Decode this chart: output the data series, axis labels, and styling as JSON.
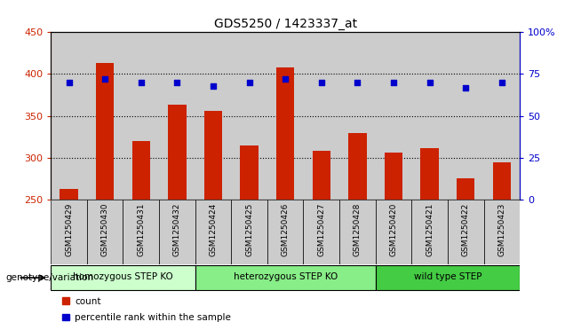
{
  "title": "GDS5250 / 1423337_at",
  "samples": [
    "GSM1250429",
    "GSM1250430",
    "GSM1250431",
    "GSM1250432",
    "GSM1250424",
    "GSM1250425",
    "GSM1250426",
    "GSM1250427",
    "GSM1250428",
    "GSM1250420",
    "GSM1250421",
    "GSM1250422",
    "GSM1250423"
  ],
  "counts": [
    263,
    413,
    320,
    363,
    356,
    315,
    408,
    308,
    330,
    306,
    311,
    275,
    295
  ],
  "percentiles": [
    70,
    72,
    70,
    70,
    68,
    70,
    72,
    70,
    70,
    70,
    70,
    67,
    70
  ],
  "count_baseline": 250,
  "ylim_left": [
    250,
    450
  ],
  "ylim_right": [
    0,
    100
  ],
  "yticks_left": [
    250,
    300,
    350,
    400,
    450
  ],
  "yticks_right": [
    0,
    25,
    50,
    75,
    100
  ],
  "bar_color": "#cc2200",
  "dot_color": "#0000cc",
  "groups": [
    {
      "label": "homozygous STEP KO",
      "start": 0,
      "end": 4,
      "color": "#ccffcc"
    },
    {
      "label": "heterozygous STEP KO",
      "start": 4,
      "end": 9,
      "color": "#88ee88"
    },
    {
      "label": "wild type STEP",
      "start": 9,
      "end": 13,
      "color": "#44cc44"
    }
  ],
  "xlabel_genotype": "genotype/variation",
  "legend_count": "count",
  "legend_percentile": "percentile rank within the sample",
  "background_color": "#ffffff",
  "tick_area_bg": "#cccccc",
  "plot_bg": "#ffffff"
}
